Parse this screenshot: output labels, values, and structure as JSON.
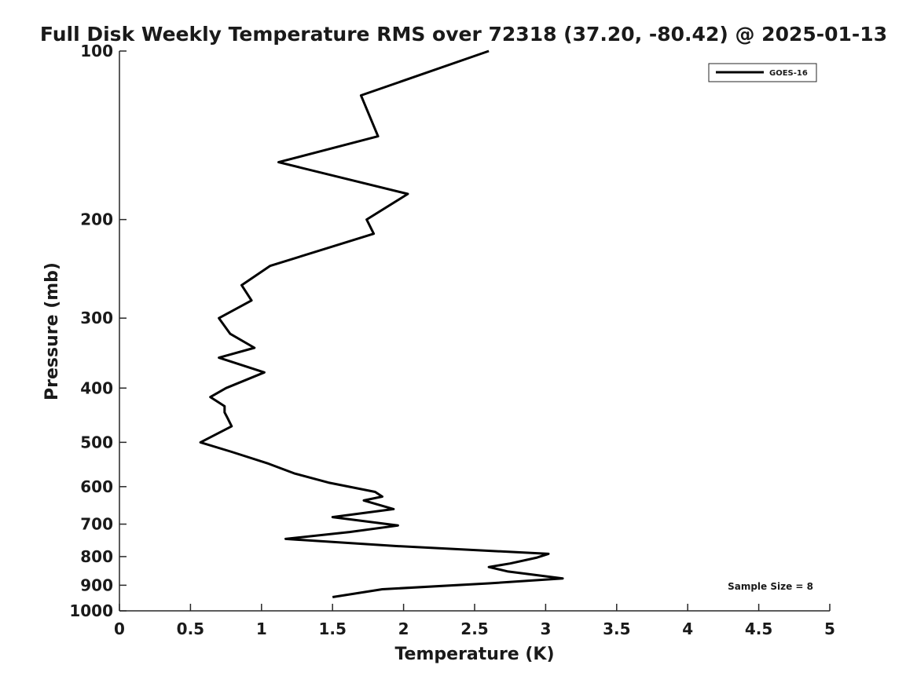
{
  "chart_data": {
    "type": "line",
    "title": "Full Disk Weekly Temperature RMS over 72318 (37.20, -80.42) @ 2025-01-13",
    "xlabel": "Temperature (K)",
    "ylabel": "Pressure (mb)",
    "xlim": [
      0,
      5
    ],
    "ylim": [
      100,
      1000
    ],
    "y_scale": "log",
    "y_reversed": true,
    "x_ticks": [
      "0",
      "0.5",
      "1",
      "1.5",
      "2",
      "2.5",
      "3",
      "3.5",
      "4",
      "4.5",
      "5"
    ],
    "y_ticks": [
      "100",
      "200",
      "300",
      "400",
      "500",
      "600",
      "700",
      "800",
      "900",
      "1000"
    ],
    "grid": false,
    "legend_position": "top-right",
    "annotation": "Sample Size = 8",
    "series": [
      {
        "name": "GOES-16",
        "color": "#000000",
        "x": [
          2.6,
          1.7,
          1.82,
          1.12,
          2.03,
          1.74,
          1.79,
          1.06,
          0.86,
          0.93,
          0.7,
          0.78,
          0.95,
          0.7,
          1.02,
          0.75,
          0.64,
          0.74,
          0.74,
          0.76,
          0.79,
          0.57,
          0.79,
          1.05,
          1.23,
          1.47,
          1.8,
          1.85,
          1.72,
          1.93,
          1.5,
          1.96,
          1.62,
          1.17,
          1.95,
          3.02,
          2.94,
          2.75,
          2.6,
          2.73,
          3.12,
          2.6,
          1.85,
          1.5
        ],
        "y": [
          100,
          120,
          142,
          158,
          180,
          200,
          212,
          242,
          262,
          279,
          300,
          320,
          339,
          353,
          375,
          400,
          415,
          431,
          442,
          452,
          468,
          500,
          520,
          546,
          568,
          590,
          613,
          625,
          635,
          658,
          680,
          704,
          723,
          744,
          766,
          791,
          803,
          823,
          835,
          850,
          875,
          893,
          915,
          945
        ]
      }
    ]
  }
}
